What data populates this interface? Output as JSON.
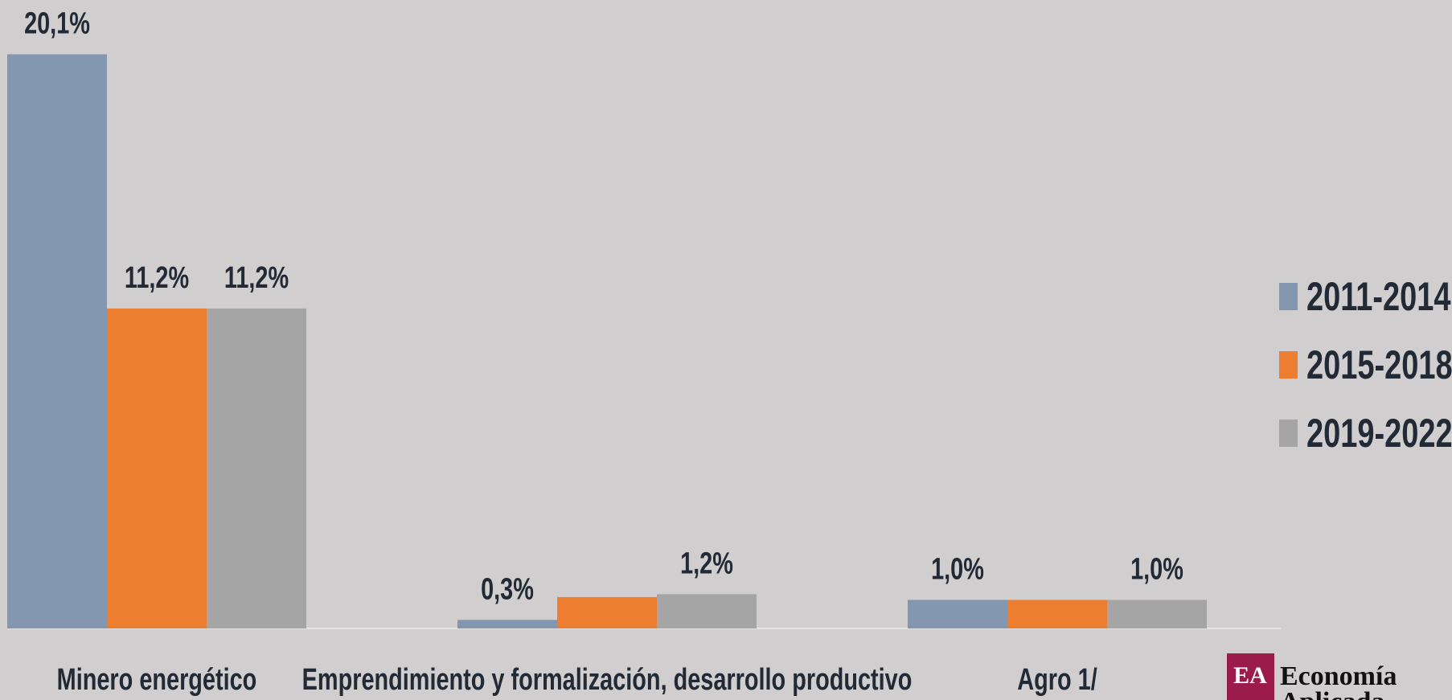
{
  "chart_data": {
    "type": "bar",
    "categories": [
      "Minero energético",
      "Emprendimiento y formalización, desarrollo productivo",
      "Agro 1/"
    ],
    "series": [
      {
        "name": "2011-2014",
        "color": "#8497b0",
        "values": [
          20.1,
          0.3,
          1.0
        ],
        "value_labels": [
          "20,1%",
          "0,3%",
          "1,0%"
        ]
      },
      {
        "name": "2015-2018",
        "color": "#ed7d31",
        "values": [
          11.2,
          1.1,
          1.0
        ],
        "value_labels": [
          "11,2%",
          null,
          null
        ]
      },
      {
        "name": "2019-2022",
        "color": "#a5a5a5",
        "values": [
          11.2,
          1.2,
          1.0
        ],
        "value_labels": [
          "11,2%",
          "1,2%",
          "1,0%"
        ]
      }
    ],
    "ylim": [
      0,
      22
    ],
    "legend": "right"
  },
  "logo": {
    "mark": "EA",
    "line1": "Economía",
    "line2": "Aplicada"
  }
}
